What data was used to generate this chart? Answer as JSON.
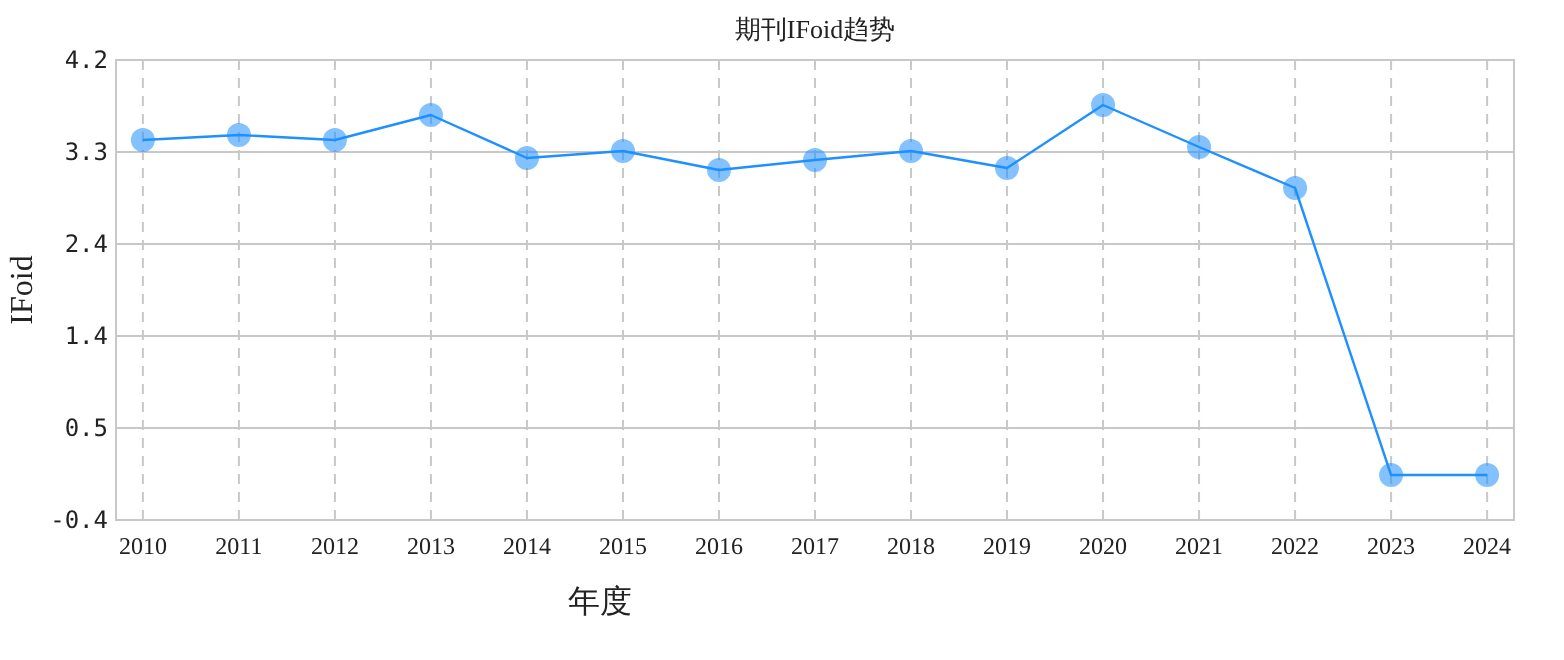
{
  "chart_data": {
    "type": "line",
    "title": "期刊IFoid趋势",
    "xlabel": "年度",
    "ylabel": "IFoid",
    "categories": [
      "2010",
      "2011",
      "2012",
      "2013",
      "2014",
      "2015",
      "2016",
      "2017",
      "2018",
      "2019",
      "2020",
      "2021",
      "2022",
      "2023",
      "2024"
    ],
    "series": [
      {
        "color": "#1e90ff",
        "values": [
          3.4,
          3.45,
          3.4,
          3.65,
          3.22,
          3.29,
          3.1,
          3.2,
          3.29,
          3.12,
          3.75,
          3.33,
          2.92,
          0.05,
          0.05
        ]
      }
    ],
    "ylim": [
      -0.4,
      4.2
    ],
    "yticks": [
      -0.4,
      {
        "value": 0.52,
        "label": "0.5"
      },
      {
        "value": 1.44,
        "label": "1.4"
      },
      {
        "value": 2.36,
        "label": "2.4"
      },
      {
        "value": 3.28,
        "label": "3.3"
      },
      4.2
    ],
    "grid": true,
    "marker": "circle",
    "line_style": "solid"
  }
}
